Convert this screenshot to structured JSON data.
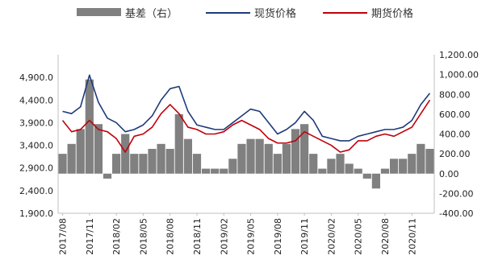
{
  "chart_data": {
    "type": "bar+line",
    "title": "",
    "legend": {
      "placement": "top",
      "entries": [
        {
          "name": "基差（右）",
          "kind": "bar",
          "color": "#808080"
        },
        {
          "name": "现货价格",
          "kind": "line",
          "color": "#1f3a7a"
        },
        {
          "name": "期货价格",
          "kind": "line",
          "color": "#c0000b"
        }
      ]
    },
    "x_tick_labels": [
      "2017/08",
      "2017/11",
      "2018/02",
      "2018/05",
      "2018/08",
      "2018/11",
      "2019/02",
      "2019/05",
      "2019/08",
      "2019/11",
      "2020/02",
      "2020/05",
      "2020/08",
      "2020/11"
    ],
    "y_left": {
      "ticks": [
        "1,900.0",
        "2,400.0",
        "2,900.0",
        "3,400.0",
        "3,900.0",
        "4,400.0",
        "4,900.0"
      ],
      "min": 1900,
      "max": 5400
    },
    "y_right": {
      "ticks": [
        "-400.00",
        "-200.00",
        "0.00",
        "200.00",
        "400.00",
        "600.00",
        "800.00",
        "1,000.00",
        "1,200.00"
      ],
      "min": -400,
      "max": 1200
    },
    "x_months": [
      "2017/08",
      "2017/09",
      "2017/10",
      "2017/11",
      "2017/12",
      "2018/01",
      "2018/02",
      "2018/03",
      "2018/04",
      "2018/05",
      "2018/06",
      "2018/07",
      "2018/08",
      "2018/09",
      "2018/10",
      "2018/11",
      "2018/12",
      "2019/01",
      "2019/02",
      "2019/03",
      "2019/04",
      "2019/05",
      "2019/06",
      "2019/07",
      "2019/08",
      "2019/09",
      "2019/10",
      "2019/11",
      "2019/12",
      "2020/01",
      "2020/02",
      "2020/03",
      "2020/04",
      "2020/05",
      "2020/06",
      "2020/07",
      "2020/08",
      "2020/09",
      "2020/10",
      "2020/11",
      "2020/12",
      "2021/01"
    ],
    "series": [
      {
        "name": "现货价格",
        "axis": "left",
        "type": "line",
        "color": "#1f3a7a",
        "values": [
          4150,
          4100,
          4250,
          4950,
          4350,
          4000,
          3900,
          3700,
          3750,
          3850,
          4050,
          4400,
          4650,
          4700,
          4150,
          3850,
          3800,
          3750,
          3750,
          3900,
          4050,
          4200,
          4150,
          3900,
          3650,
          3750,
          3900,
          4150,
          3950,
          3600,
          3550,
          3500,
          3500,
          3600,
          3650,
          3700,
          3750,
          3750,
          3800,
          3950,
          4300,
          4550
        ]
      },
      {
        "name": "期货价格",
        "axis": "left",
        "type": "line",
        "color": "#c0000b",
        "values": [
          3950,
          3700,
          3750,
          3950,
          3750,
          3700,
          3550,
          3250,
          3600,
          3650,
          3800,
          4100,
          4300,
          4100,
          3800,
          3750,
          3650,
          3650,
          3700,
          3850,
          3950,
          3850,
          3750,
          3550,
          3450,
          3450,
          3500,
          3700,
          3600,
          3500,
          3400,
          3250,
          3300,
          3500,
          3500,
          3600,
          3650,
          3600,
          3700,
          3800,
          4100,
          4400
        ]
      },
      {
        "name": "基差（右）",
        "axis": "right",
        "type": "bar",
        "color": "#808080",
        "values": [
          200,
          300,
          450,
          950,
          500,
          -50,
          200,
          400,
          200,
          200,
          250,
          300,
          250,
          600,
          350,
          200,
          50,
          50,
          50,
          150,
          300,
          350,
          350,
          300,
          200,
          300,
          450,
          500,
          200,
          50,
          150,
          200,
          100,
          50,
          -50,
          -150,
          50,
          150,
          150,
          200,
          300,
          250
        ]
      }
    ]
  }
}
